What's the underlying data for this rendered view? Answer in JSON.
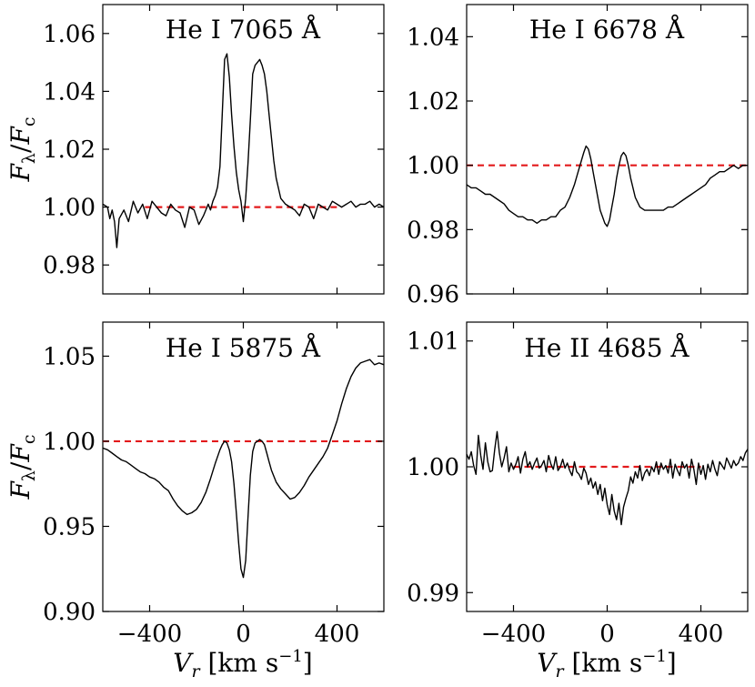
{
  "chart_data": [
    {
      "type": "line",
      "title": "He I 7065 Å",
      "xlim": [
        -600,
        600
      ],
      "ylim": [
        0.97,
        1.07
      ],
      "yticks": [
        0.98,
        1.0,
        1.02,
        1.04,
        1.06
      ],
      "ytick_labels": [
        "0.98",
        "1.00",
        "1.02",
        "1.04",
        "1.06"
      ],
      "xticks": [
        -400,
        0,
        400
      ],
      "xtick_labels": [],
      "ylabel": "Fλ/Fc",
      "xlabel": "",
      "reference": {
        "y": 1.0,
        "x_range": [
          -420,
          420
        ],
        "color": "#e31a1c",
        "style": "dashed"
      },
      "series": [
        {
          "name": "spectrum",
          "x": [
            -600,
            -580,
            -570,
            -560,
            -550,
            -540,
            -530,
            -510,
            -490,
            -470,
            -450,
            -430,
            -410,
            -390,
            -370,
            -350,
            -330,
            -310,
            -290,
            -270,
            -250,
            -230,
            -210,
            -190,
            -170,
            -150,
            -140,
            -130,
            -120,
            -110,
            -100,
            -90,
            -80,
            -70,
            -60,
            -50,
            -40,
            -30,
            -20,
            -10,
            0,
            10,
            20,
            30,
            40,
            50,
            60,
            70,
            80,
            90,
            100,
            110,
            120,
            130,
            140,
            160,
            180,
            200,
            220,
            240,
            260,
            280,
            300,
            320,
            340,
            360,
            380,
            400,
            420,
            440,
            460,
            480,
            500,
            520,
            540,
            560,
            580,
            600
          ],
          "y": [
            1.001,
            1.0,
            0.996,
            0.999,
            0.995,
            0.986,
            0.996,
            0.999,
            0.995,
            1.002,
            0.998,
            1.001,
            0.996,
            1.002,
            1.0,
            0.998,
            0.997,
            1.001,
            0.999,
            0.998,
            0.993,
            1.0,
            0.999,
            0.994,
            0.997,
            1.001,
            0.999,
            1.002,
            1.004,
            1.007,
            1.014,
            1.032,
            1.051,
            1.053,
            1.045,
            1.032,
            1.021,
            1.012,
            1.006,
            1.002,
            0.995,
            1.003,
            1.015,
            1.03,
            1.046,
            1.049,
            1.05,
            1.051,
            1.049,
            1.046,
            1.04,
            1.032,
            1.024,
            1.016,
            1.01,
            1.003,
            1.001,
            1.0,
            0.999,
            0.997,
            1.001,
            1.0,
            0.996,
            1.001,
            1.0,
            0.999,
            1.002,
            1.001,
            1.0,
            1.001,
            1.002,
            1.0,
            1.001,
            1.001,
            1.002,
            1.0,
            1.001,
            1.0
          ]
        }
      ]
    },
    {
      "type": "line",
      "title": "He I 6678 Å",
      "xlim": [
        -600,
        600
      ],
      "ylim": [
        0.96,
        1.05
      ],
      "yticks": [
        0.96,
        0.98,
        1.0,
        1.02,
        1.04
      ],
      "ytick_labels": [
        "0.96",
        "0.98",
        "1.00",
        "1.02",
        "1.04"
      ],
      "xticks": [
        -400,
        0,
        400
      ],
      "xtick_labels": [],
      "ylabel": "",
      "xlabel": "",
      "reference": {
        "y": 1.0,
        "x_range": [
          -600,
          600
        ],
        "color": "#e31a1c",
        "style": "dashed"
      },
      "series": [
        {
          "name": "spectrum",
          "x": [
            -600,
            -580,
            -560,
            -540,
            -520,
            -500,
            -480,
            -460,
            -440,
            -420,
            -400,
            -380,
            -360,
            -340,
            -320,
            -300,
            -280,
            -260,
            -240,
            -220,
            -200,
            -180,
            -160,
            -140,
            -120,
            -100,
            -90,
            -80,
            -70,
            -60,
            -50,
            -40,
            -30,
            -20,
            -10,
            0,
            10,
            20,
            30,
            40,
            50,
            60,
            70,
            80,
            90,
            100,
            120,
            140,
            160,
            180,
            200,
            220,
            240,
            260,
            280,
            300,
            320,
            340,
            360,
            380,
            400,
            420,
            440,
            460,
            480,
            500,
            520,
            540,
            560,
            580,
            600
          ],
          "y": [
            0.994,
            0.993,
            0.993,
            0.992,
            0.991,
            0.991,
            0.99,
            0.989,
            0.988,
            0.986,
            0.985,
            0.984,
            0.984,
            0.983,
            0.983,
            0.982,
            0.983,
            0.983,
            0.984,
            0.984,
            0.986,
            0.987,
            0.99,
            0.994,
            0.999,
            1.004,
            1.006,
            1.005,
            1.002,
            0.998,
            0.994,
            0.99,
            0.986,
            0.984,
            0.982,
            0.981,
            0.983,
            0.987,
            0.991,
            0.996,
            1.0,
            1.003,
            1.004,
            1.003,
            1.0,
            0.996,
            0.99,
            0.987,
            0.986,
            0.986,
            0.986,
            0.986,
            0.986,
            0.987,
            0.987,
            0.988,
            0.989,
            0.99,
            0.991,
            0.992,
            0.993,
            0.994,
            0.996,
            0.997,
            0.998,
            0.998,
            0.999,
            1.0,
            0.999,
            1.0,
            1.0
          ]
        }
      ]
    },
    {
      "type": "line",
      "title": "He I 5875 Å",
      "xlim": [
        -600,
        600
      ],
      "ylim": [
        0.9,
        1.07
      ],
      "yticks": [
        0.9,
        0.95,
        1.0,
        1.05
      ],
      "ytick_labels": [
        "0.90",
        "0.95",
        "1.00",
        "1.05"
      ],
      "xticks": [
        -400,
        0,
        400
      ],
      "xtick_labels": [
        "−400",
        "0",
        "400"
      ],
      "ylabel": "Fλ/Fc",
      "xlabel": "Vr [km s−1]",
      "reference": {
        "y": 1.0,
        "x_range": [
          -600,
          600
        ],
        "color": "#e31a1c",
        "style": "dashed"
      },
      "series": [
        {
          "name": "spectrum",
          "x": [
            -600,
            -580,
            -560,
            -540,
            -520,
            -500,
            -480,
            -460,
            -440,
            -420,
            -400,
            -380,
            -360,
            -340,
            -320,
            -300,
            -280,
            -260,
            -240,
            -220,
            -200,
            -180,
            -160,
            -140,
            -120,
            -100,
            -90,
            -80,
            -70,
            -60,
            -50,
            -40,
            -30,
            -20,
            -10,
            0,
            10,
            20,
            30,
            40,
            50,
            60,
            70,
            80,
            90,
            100,
            110,
            120,
            140,
            160,
            180,
            200,
            220,
            240,
            260,
            280,
            300,
            320,
            340,
            360,
            380,
            400,
            420,
            440,
            460,
            480,
            500,
            520,
            540,
            560,
            580,
            600
          ],
          "y": [
            0.996,
            0.995,
            0.993,
            0.991,
            0.989,
            0.988,
            0.986,
            0.984,
            0.982,
            0.981,
            0.979,
            0.978,
            0.976,
            0.973,
            0.971,
            0.966,
            0.962,
            0.959,
            0.957,
            0.958,
            0.96,
            0.964,
            0.97,
            0.978,
            0.987,
            0.995,
            0.998,
            1.0,
            0.999,
            0.995,
            0.988,
            0.975,
            0.958,
            0.94,
            0.925,
            0.92,
            0.93,
            0.955,
            0.98,
            0.994,
            0.999,
            1.0,
            1.001,
            1.0,
            0.998,
            0.993,
            0.988,
            0.983,
            0.976,
            0.972,
            0.969,
            0.966,
            0.967,
            0.97,
            0.974,
            0.979,
            0.983,
            0.987,
            0.991,
            0.996,
            1.004,
            1.012,
            1.022,
            1.031,
            1.038,
            1.043,
            1.046,
            1.047,
            1.048,
            1.045,
            1.046,
            1.045
          ]
        }
      ]
    },
    {
      "type": "line",
      "title": "He II 4685 Å",
      "xlim": [
        -600,
        600
      ],
      "ylim": [
        0.9885,
        1.0115
      ],
      "yticks": [
        0.99,
        1.0,
        1.01
      ],
      "ytick_labels": [
        "0.99",
        "1.00",
        "1.01"
      ],
      "xticks": [
        -400,
        0,
        400
      ],
      "xtick_labels": [
        "−400",
        "0",
        "400"
      ],
      "ylabel": "",
      "xlabel": "Vr [km s−1]",
      "reference": {
        "y": 1.0,
        "x_range": [
          -400,
          400
        ],
        "color": "#e31a1c",
        "style": "dashed"
      },
      "series": [
        {
          "name": "spectrum",
          "x": [
            -600,
            -590,
            -580,
            -570,
            -560,
            -550,
            -540,
            -530,
            -520,
            -510,
            -500,
            -490,
            -480,
            -470,
            -460,
            -450,
            -440,
            -430,
            -420,
            -410,
            -400,
            -390,
            -380,
            -370,
            -360,
            -350,
            -340,
            -330,
            -320,
            -310,
            -300,
            -290,
            -280,
            -270,
            -260,
            -250,
            -240,
            -230,
            -220,
            -210,
            -200,
            -190,
            -180,
            -170,
            -160,
            -150,
            -140,
            -130,
            -120,
            -110,
            -100,
            -90,
            -80,
            -70,
            -60,
            -50,
            -40,
            -30,
            -20,
            -10,
            0,
            10,
            20,
            30,
            40,
            50,
            60,
            70,
            80,
            90,
            100,
            110,
            120,
            130,
            140,
            150,
            160,
            170,
            180,
            190,
            200,
            210,
            220,
            230,
            240,
            250,
            260,
            270,
            280,
            290,
            300,
            310,
            320,
            330,
            340,
            350,
            360,
            370,
            380,
            390,
            400,
            410,
            420,
            430,
            440,
            450,
            460,
            470,
            480,
            490,
            500,
            510,
            520,
            530,
            540,
            550,
            560,
            570,
            580,
            590,
            600
          ],
          "y": [
            1.001,
            1.0006,
            1.0012,
            1.0001,
            0.9994,
            1.0025,
            1.0009,
            0.9998,
            1.0019,
            1.0004,
            0.9996,
            0.9997,
            1.0014,
            1.0028,
            1.0011,
            1.0,
            1.0007,
            1.0016,
            0.9996,
            1.0003,
            0.9998,
            1.0002,
            1.0008,
            0.9995,
            1.0006,
            1.0012,
            1.0,
            1.0004,
            0.9998,
            1.0003,
            1.0007,
            0.9999,
            1.0001,
            1.0005,
            0.9996,
            1.0009,
            1.0002,
            0.9998,
            1.0008,
            0.9997,
            1.0,
            1.0006,
            0.9999,
            1.0003,
            0.9997,
            0.9993,
            1.0004,
            0.9996,
            0.9994,
            0.999,
            0.9999,
            0.9995,
            0.9986,
            0.9991,
            0.9983,
            0.9988,
            0.9978,
            0.9986,
            0.9973,
            0.9983,
            0.997,
            0.9962,
            0.9978,
            0.9965,
            0.9958,
            0.9971,
            0.9954,
            0.9968,
            0.9975,
            0.9981,
            0.9992,
            0.9987,
            0.9996,
            0.9991,
            1.0001,
            0.9989,
            0.9995,
            0.9998,
            0.9993,
            1.0,
            0.9996,
            1.0004,
            0.9994,
            1.0003,
            0.9998,
            1.0001,
            0.9995,
            1.0006,
            0.9991,
            1.0002,
            0.9997,
            0.9993,
            1.0004,
            0.9999,
            1.0002,
            0.9991,
            1.0006,
            0.9998,
            0.9986,
            1.0003,
            0.9994,
            1.0001,
            0.999,
            1.0002,
            0.9996,
            1.0005,
            0.9998,
            0.9993,
            1.0004,
            1.0001,
            0.9998,
            1.0007,
            1.0003,
            0.9999,
            1.0005,
            1.0001,
            1.0003,
            1.0008,
            1.0005,
            1.0011,
            1.0014
          ]
        }
      ]
    }
  ]
}
